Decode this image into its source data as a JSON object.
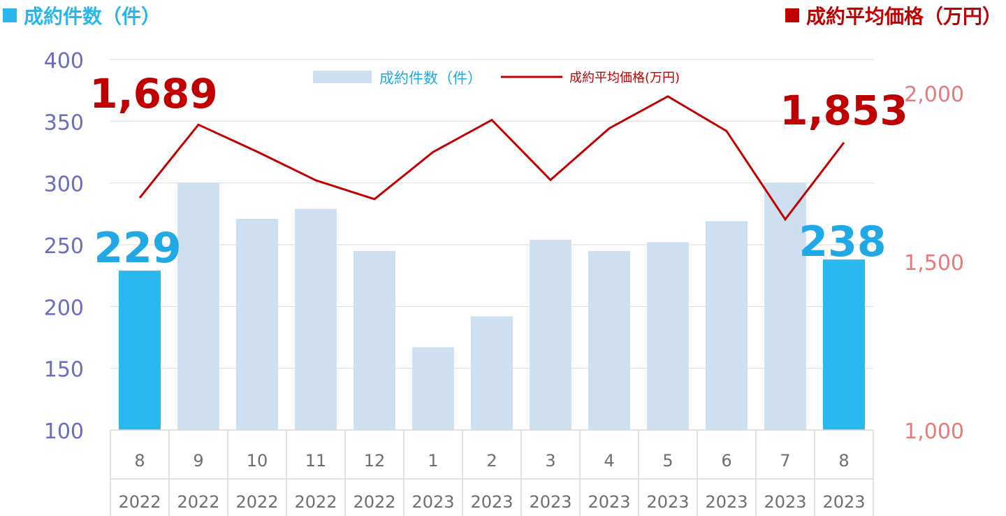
{
  "left_legend_label": "成約件数（件）",
  "right_legend_label": "成約平均価格（万円）",
  "colors": {
    "bar_normal": "#cfdff2",
    "bar_highlight": "#29b9ee",
    "line": "#c00000",
    "left_axis": "#6b6bbf",
    "right_axis": "#e77a7a",
    "category_text": "#6e6e6e",
    "big_left_label": "#21a9e6",
    "big_right_label": "#c00000"
  },
  "chart_data": {
    "type": "bar",
    "categories": [
      "8",
      "9",
      "10",
      "11",
      "12",
      "1",
      "2",
      "3",
      "4",
      "5",
      "6",
      "7",
      "8"
    ],
    "years": [
      "2022",
      "2022",
      "2022",
      "2022",
      "2022",
      "2023",
      "2023",
      "2023",
      "2023",
      "2023",
      "2023",
      "2023",
      "2023"
    ],
    "series": [
      {
        "name": "成約件数（件）",
        "axis": "left",
        "type": "bar",
        "values": [
          229,
          300,
          271,
          279,
          245,
          167,
          192,
          254,
          245,
          252,
          269,
          300,
          238
        ],
        "highlight_indices": [
          0,
          12
        ]
      },
      {
        "name": "成約平均価格(万円)",
        "axis": "right",
        "type": "line",
        "values": [
          1689,
          1906,
          1826,
          1741,
          1685,
          1825,
          1920,
          1742,
          1895,
          1990,
          1887,
          1625,
          1853
        ]
      }
    ],
    "left_axis": {
      "ylim": [
        100,
        400
      ],
      "ticks": [
        "100",
        "150",
        "200",
        "250",
        "300",
        "350",
        "400"
      ]
    },
    "right_axis": {
      "ylim": [
        1000,
        2000
      ],
      "ticks": [
        "1,000",
        "1,500",
        "2,000"
      ]
    },
    "annotations": {
      "first_bar": "229",
      "last_bar": "238",
      "first_price": "1,689",
      "last_price": "1,853"
    },
    "legend": {
      "placement": "top-center",
      "bar_label": "成約件数（件）",
      "line_label": "成約平均価格(万円)"
    },
    "grid": true
  }
}
